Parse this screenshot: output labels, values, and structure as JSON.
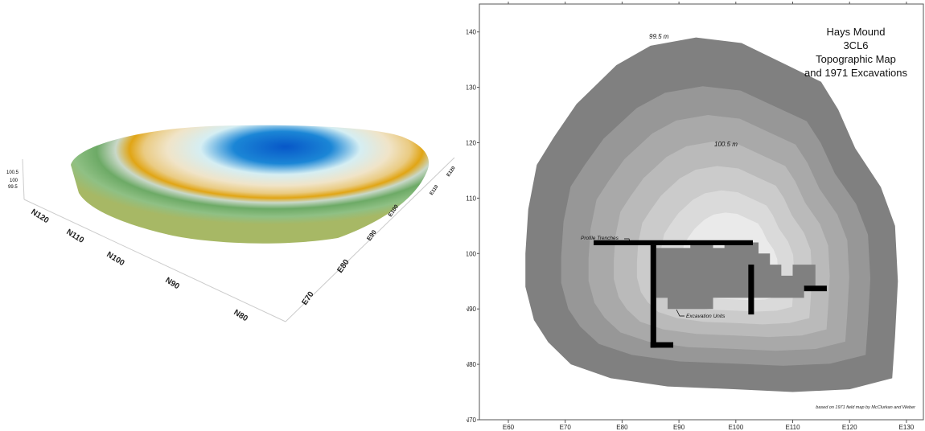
{
  "surface_3d": {
    "n_axis_labels": [
      "N80",
      "N90",
      "N100",
      "N110",
      "N120"
    ],
    "e_axis_labels": [
      "E70",
      "E80",
      "E90",
      "E100",
      "E110",
      "E120"
    ],
    "z_axis_labels": [
      "99.5",
      "100",
      "100.5"
    ],
    "colors": {
      "low": "#6aa865",
      "mid": "#e8a619",
      "cream": "#efe3c6",
      "pale": "#d9eef2",
      "high": "#0a5fc9"
    }
  },
  "map": {
    "title_lines": [
      "Hays Mound",
      "3CL6",
      "Topographic Map",
      "and 1971 Excavations"
    ],
    "contour_labels": {
      "outer": "99.5 m",
      "inner": "100.5 m"
    },
    "annotations": {
      "trenches": "Profile Trenches",
      "units": "Excavation Units"
    },
    "credit": "based on 1971 field map by McClurkan and Weber",
    "x_ticks": [
      "E60",
      "E70",
      "E80",
      "E90",
      "E100",
      "E110",
      "E120",
      "E130"
    ],
    "y_ticks": [
      "N70",
      "N80",
      "N90",
      "N100",
      "N110",
      "N120",
      "N130",
      "N140"
    ],
    "contour_shades": [
      "#808080",
      "#979797",
      "#a9a9a9",
      "#bababa",
      "#cbcbcb",
      "#dadada",
      "#eaeaea"
    ],
    "excavation_color": "#808080",
    "trench_color": "#000000"
  }
}
